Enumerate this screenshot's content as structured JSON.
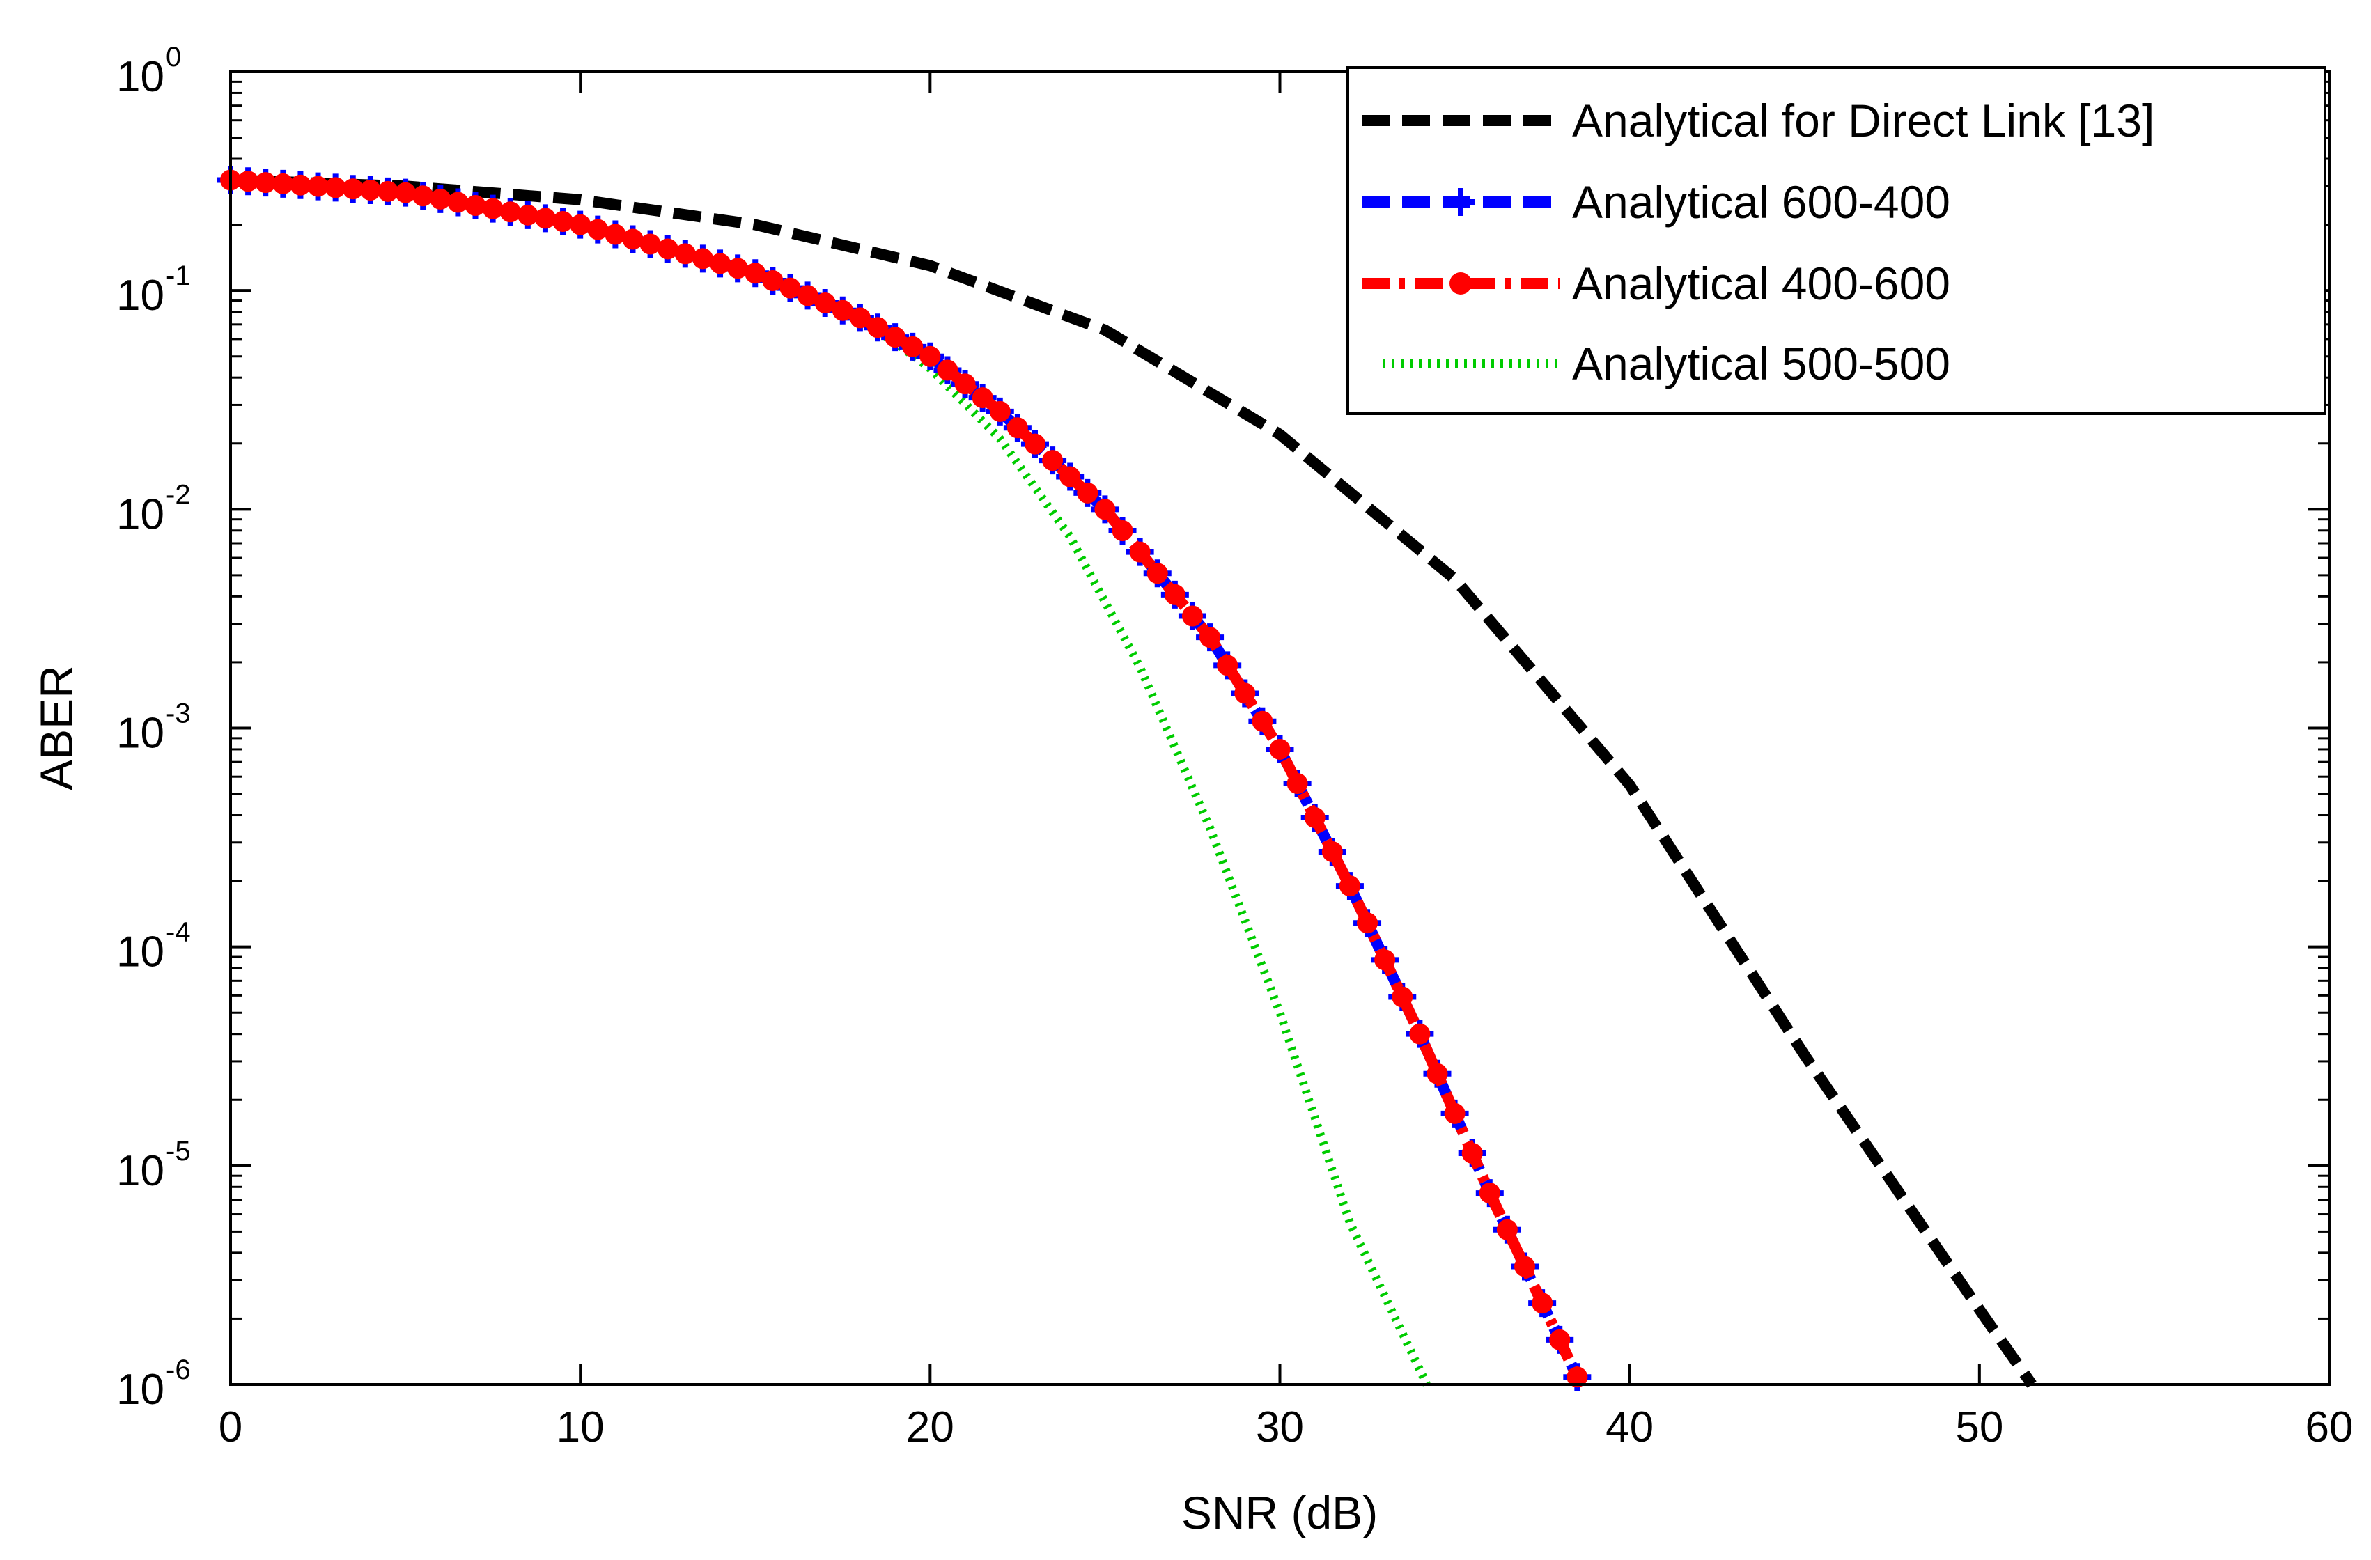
{
  "chart_data": {
    "type": "line",
    "title": "",
    "xlabel": "SNR (dB)",
    "ylabel": "ABER",
    "xlim": [
      0,
      60
    ],
    "ylim": [
      1e-06,
      1
    ],
    "yscale": "log",
    "grid": false,
    "legend_position": "top-right",
    "x_ticks": [
      0,
      10,
      20,
      30,
      40,
      50,
      60
    ],
    "y_ticks": [
      {
        "base": "10",
        "exp": "0",
        "value": 1
      },
      {
        "base": "10",
        "exp": "-1",
        "value": 0.1
      },
      {
        "base": "10",
        "exp": "-2",
        "value": 0.01
      },
      {
        "base": "10",
        "exp": "-3",
        "value": 0.001
      },
      {
        "base": "10",
        "exp": "-4",
        "value": 0.0001
      },
      {
        "base": "10",
        "exp": "-5",
        "value": 1e-05
      },
      {
        "base": "10",
        "exp": "-6",
        "value": 1e-06
      }
    ],
    "series": [
      {
        "name": "Analytical for Direct Link [13]",
        "color": "#000000",
        "style": "dashed",
        "marker": "none",
        "x": [
          0,
          5,
          10,
          15,
          20,
          25,
          30,
          35,
          40,
          45,
          50,
          51.5
        ],
        "y": [
          0.32,
          0.3,
          0.26,
          0.2,
          0.13,
          0.066,
          0.022,
          0.0048,
          0.00055,
          3.2e-05,
          2.2e-06,
          1e-06
        ]
      },
      {
        "name": "Analytical 600-400",
        "color": "#0000ff",
        "style": "dashed",
        "marker": "plus",
        "x": [
          0,
          5,
          10,
          15,
          18,
          20,
          22,
          25,
          28,
          30,
          32,
          34,
          36,
          38,
          38.6
        ],
        "y": [
          0.32,
          0.28,
          0.2,
          0.12,
          0.075,
          0.05,
          0.028,
          0.01,
          0.0026,
          0.0008,
          0.00019,
          4e-05,
          7.5e-06,
          1.6e-06,
          1e-06
        ]
      },
      {
        "name": "Analytical 400-600",
        "color": "#ff0000",
        "style": "dashdot",
        "marker": "circle",
        "x": [
          0,
          5,
          10,
          15,
          18,
          20,
          22,
          25,
          28,
          30,
          32,
          34,
          36,
          38,
          38.6
        ],
        "y": [
          0.32,
          0.28,
          0.2,
          0.12,
          0.075,
          0.05,
          0.028,
          0.01,
          0.0026,
          0.0008,
          0.00019,
          4e-05,
          7.5e-06,
          1.6e-06,
          1e-06
        ]
      },
      {
        "name": "Analytical 500-500",
        "color": "#00cc00",
        "style": "dotted",
        "marker": "none",
        "x": [
          0,
          5,
          10,
          15,
          17,
          18,
          19,
          20,
          22,
          24,
          26,
          28,
          30,
          32,
          34.2
        ],
        "y": [
          0.32,
          0.28,
          0.2,
          0.12,
          0.09,
          0.073,
          0.058,
          0.044,
          0.021,
          0.0075,
          0.0019,
          0.00035,
          5e-05,
          5.5e-06,
          1e-06
        ]
      }
    ]
  }
}
